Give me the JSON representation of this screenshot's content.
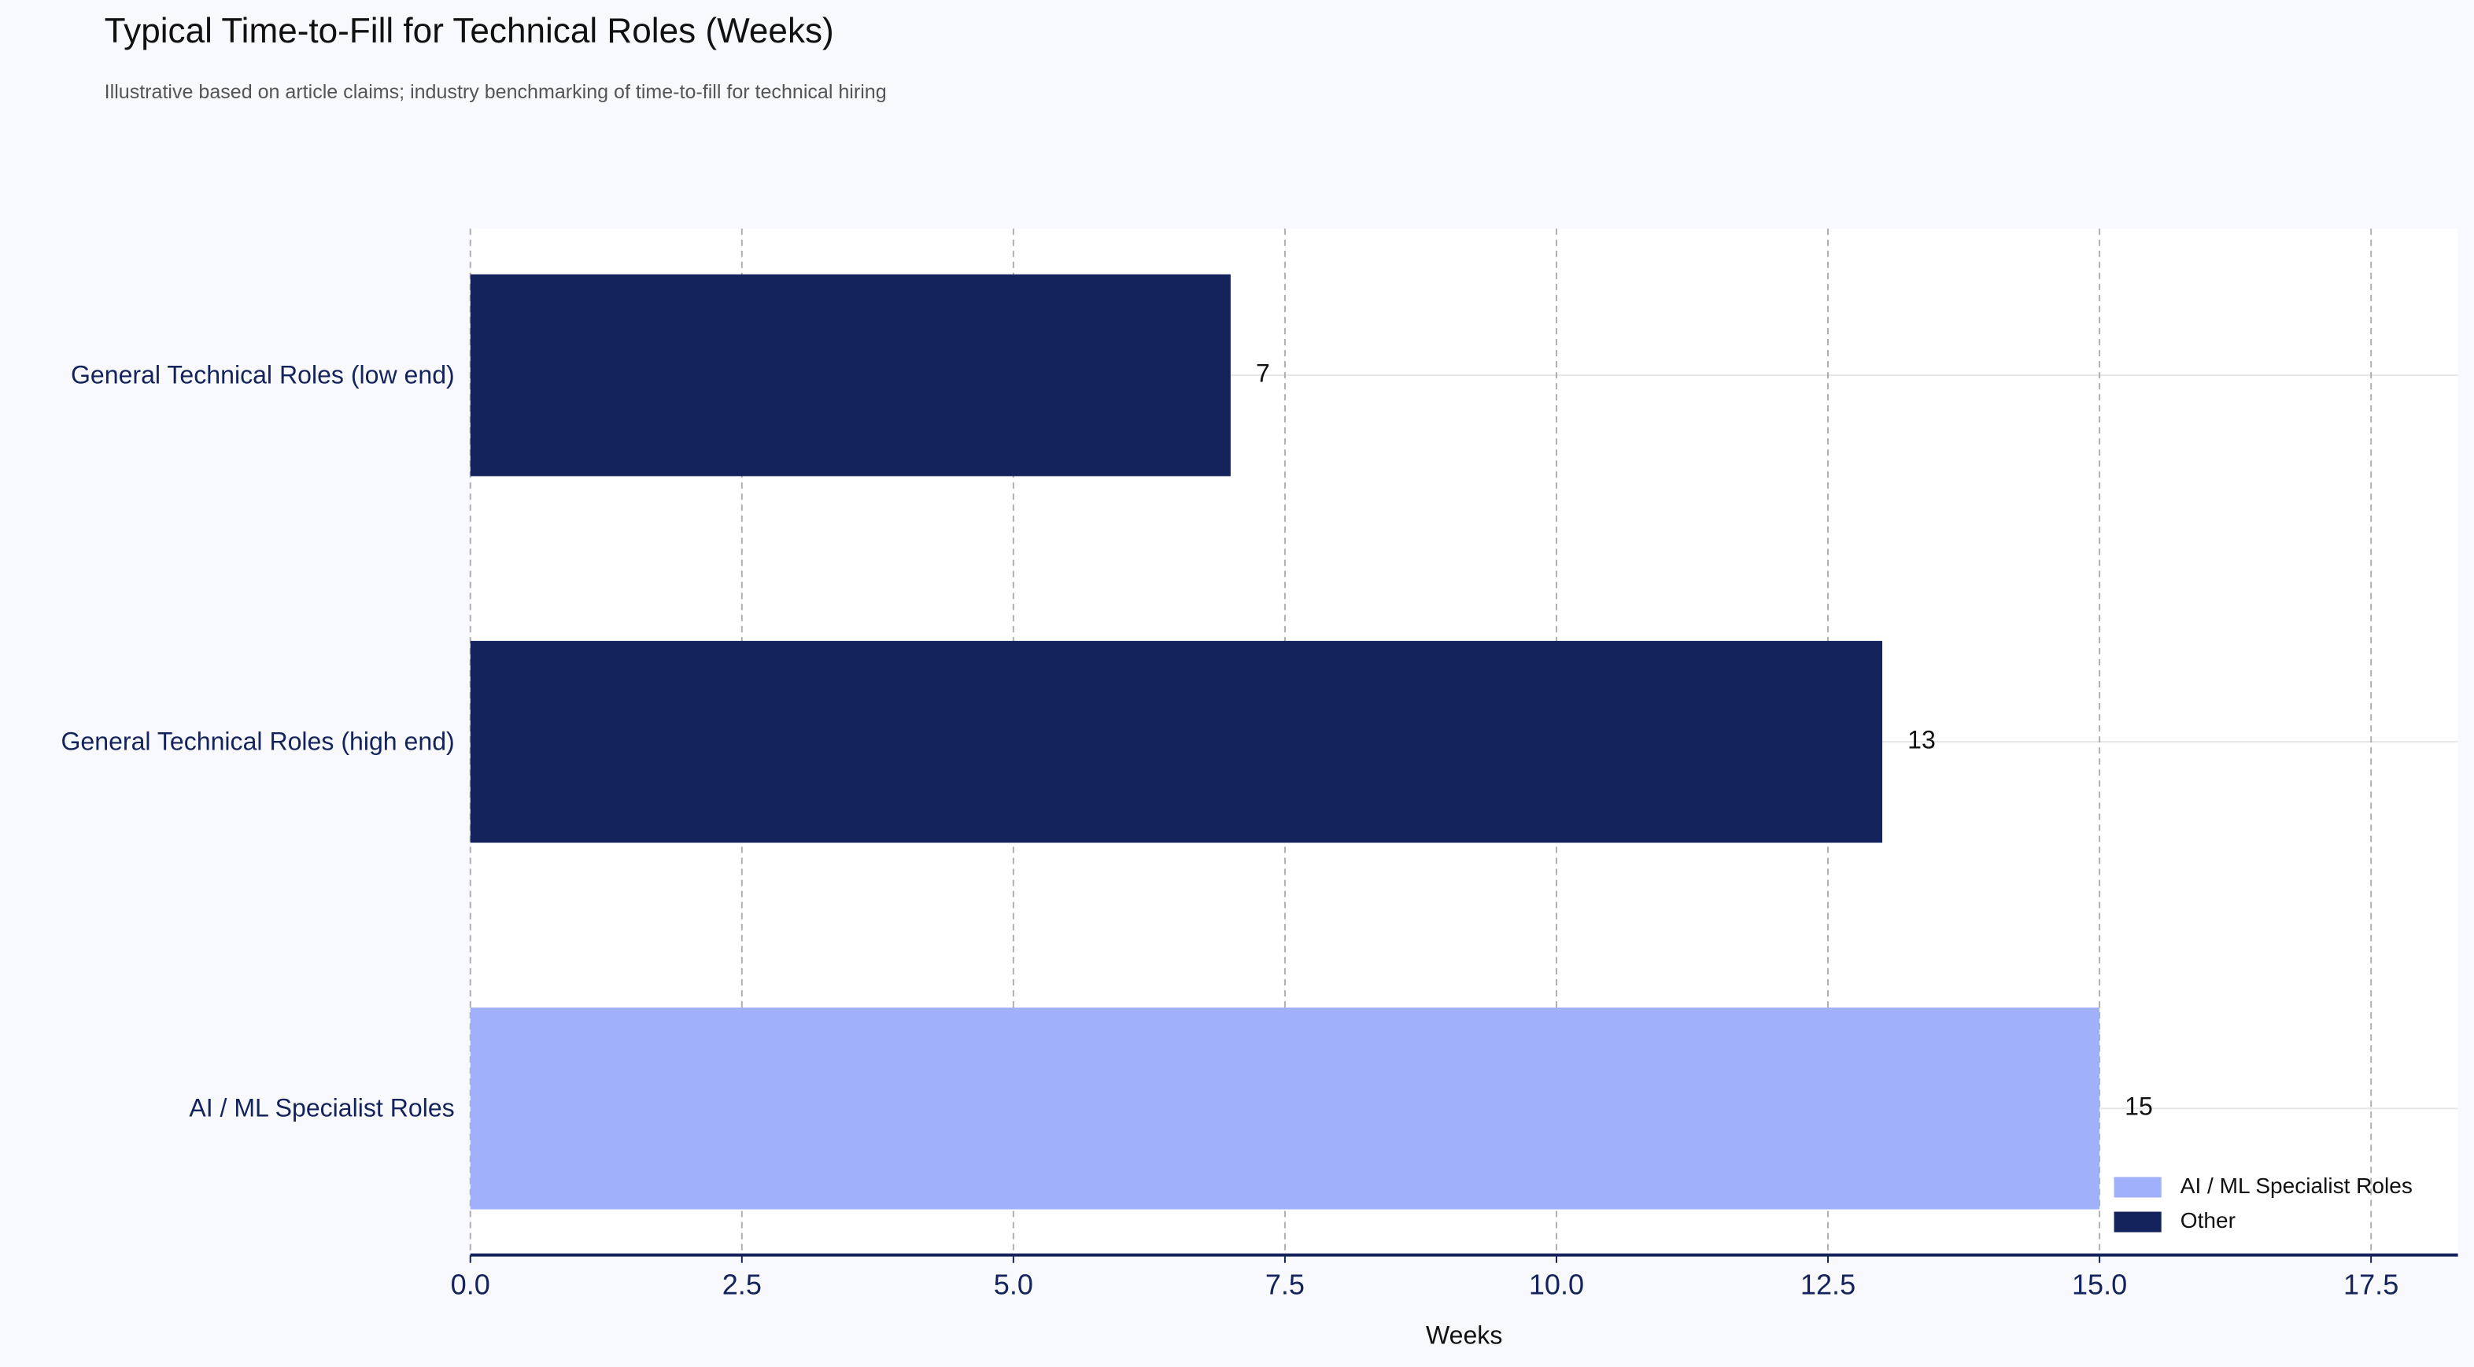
{
  "chart_data": {
    "type": "barh",
    "title": "Typical Time-to-Fill for Technical Roles (Weeks)",
    "subtitle": "Illustrative based on article claims; industry benchmarking of time-to-fill for technical hiring",
    "x_label": "Weeks",
    "categories": [
      "General Technical Roles (low end)",
      "General Technical Roles (high end)",
      "AI / ML Specialist Roles"
    ],
    "series": [
      {
        "name": "AI / ML Specialist Roles",
        "color": "#a0b0fb",
        "values": [
          null,
          null,
          15
        ]
      },
      {
        "name": "Other",
        "color": "#14235b",
        "values": [
          7,
          13,
          null
        ]
      }
    ],
    "xlim": [
      0,
      18.3
    ],
    "xticks": [
      {
        "value": 0,
        "label": "0.0"
      },
      2.5,
      {
        "value": 5,
        "label": "5.0"
      },
      7.5,
      {
        "value": 10,
        "label": "10.0"
      },
      12.5,
      {
        "value": 15,
        "label": "15.0"
      },
      17.5
    ],
    "grid": true,
    "legend": "bottom-right"
  }
}
